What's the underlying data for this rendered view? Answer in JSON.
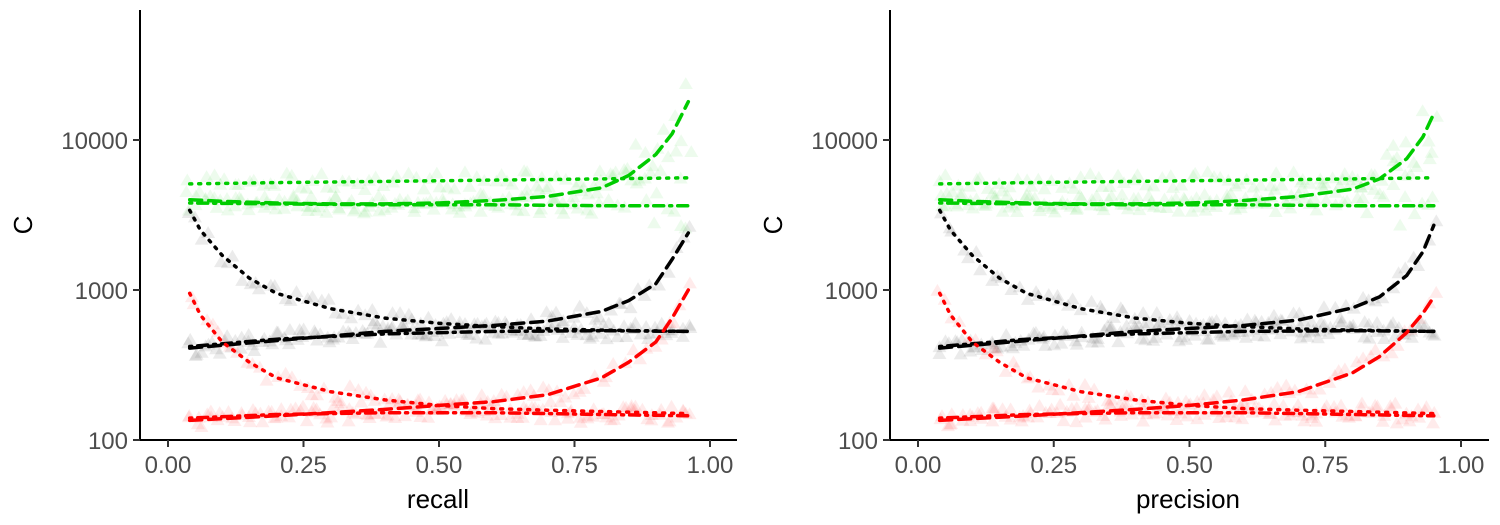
{
  "chart_data": [
    {
      "type": "scatter",
      "xlabel": "recall",
      "ylabel": "C",
      "y_scale": "log",
      "xlim": [
        0,
        1
      ],
      "ylim": [
        100,
        60000
      ],
      "x_ticks": [
        "0.00",
        "0.25",
        "0.50",
        "0.75",
        "1.00"
      ],
      "y_ticks": [
        "100",
        "1000",
        "10000"
      ],
      "grid": false,
      "legend": "none",
      "series": [
        {
          "color": "#00cc00",
          "style": "dashed",
          "x": [
            0.04,
            0.1,
            0.2,
            0.3,
            0.4,
            0.5,
            0.6,
            0.7,
            0.8,
            0.85,
            0.9,
            0.93,
            0.96
          ],
          "values": [
            4000,
            3900,
            3800,
            3750,
            3750,
            3800,
            3950,
            4200,
            4800,
            5800,
            8000,
            11000,
            18000
          ]
        },
        {
          "color": "#00cc00",
          "style": "dotted",
          "x": [
            0.04,
            0.2,
            0.4,
            0.6,
            0.8,
            0.96
          ],
          "values": [
            5100,
            5200,
            5300,
            5400,
            5500,
            5600
          ]
        },
        {
          "color": "#00cc00",
          "style": "dotdash",
          "x": [
            0.04,
            0.2,
            0.4,
            0.6,
            0.8,
            0.96
          ],
          "values": [
            3800,
            3750,
            3700,
            3700,
            3650,
            3650
          ]
        },
        {
          "color": "#000000",
          "style": "dotted",
          "x": [
            0.04,
            0.06,
            0.1,
            0.15,
            0.2,
            0.3,
            0.4,
            0.5,
            0.6,
            0.7,
            0.8,
            0.96
          ],
          "values": [
            3400,
            2500,
            1700,
            1200,
            950,
            750,
            650,
            600,
            570,
            550,
            540,
            530
          ]
        },
        {
          "color": "#000000",
          "style": "dashed",
          "x": [
            0.04,
            0.2,
            0.4,
            0.6,
            0.7,
            0.8,
            0.85,
            0.9,
            0.93,
            0.96
          ],
          "values": [
            410,
            460,
            530,
            580,
            620,
            720,
            850,
            1100,
            1600,
            2400
          ]
        },
        {
          "color": "#000000",
          "style": "dotdash",
          "x": [
            0.04,
            0.2,
            0.4,
            0.6,
            0.8,
            0.96
          ],
          "values": [
            420,
            470,
            510,
            530,
            535,
            530
          ]
        },
        {
          "color": "#ff0000",
          "style": "dotted",
          "x": [
            0.04,
            0.06,
            0.1,
            0.15,
            0.2,
            0.3,
            0.4,
            0.5,
            0.6,
            0.7,
            0.8,
            0.96
          ],
          "values": [
            950,
            680,
            450,
            330,
            260,
            210,
            185,
            170,
            162,
            158,
            155,
            150
          ]
        },
        {
          "color": "#ff0000",
          "style": "dashed",
          "x": [
            0.04,
            0.2,
            0.4,
            0.5,
            0.6,
            0.7,
            0.8,
            0.85,
            0.9,
            0.93,
            0.96
          ],
          "values": [
            135,
            145,
            160,
            170,
            180,
            200,
            260,
            330,
            450,
            650,
            1000
          ]
        },
        {
          "color": "#ff0000",
          "style": "dotdash",
          "x": [
            0.04,
            0.2,
            0.4,
            0.6,
            0.8,
            0.96
          ],
          "values": [
            140,
            148,
            152,
            152,
            148,
            145
          ]
        }
      ]
    },
    {
      "type": "scatter",
      "xlabel": "precision",
      "ylabel": "C",
      "y_scale": "log",
      "xlim": [
        0,
        1
      ],
      "ylim": [
        100,
        60000
      ],
      "x_ticks": [
        "0.00",
        "0.25",
        "0.50",
        "0.75",
        "1.00"
      ],
      "y_ticks": [
        "100",
        "1000",
        "10000"
      ],
      "grid": false,
      "legend": "none",
      "series": [
        {
          "color": "#00cc00",
          "style": "dashed",
          "x": [
            0.04,
            0.1,
            0.2,
            0.3,
            0.4,
            0.5,
            0.6,
            0.7,
            0.8,
            0.85,
            0.9,
            0.93,
            0.95
          ],
          "values": [
            4000,
            3900,
            3800,
            3750,
            3750,
            3800,
            3950,
            4200,
            4700,
            5500,
            7500,
            10500,
            15000
          ]
        },
        {
          "color": "#00cc00",
          "style": "dotted",
          "x": [
            0.04,
            0.2,
            0.4,
            0.6,
            0.8,
            0.95
          ],
          "values": [
            5100,
            5200,
            5300,
            5400,
            5500,
            5600
          ]
        },
        {
          "color": "#00cc00",
          "style": "dotdash",
          "x": [
            0.04,
            0.2,
            0.4,
            0.6,
            0.8,
            0.95
          ],
          "values": [
            3800,
            3750,
            3700,
            3700,
            3650,
            3650
          ]
        },
        {
          "color": "#000000",
          "style": "dotted",
          "x": [
            0.04,
            0.06,
            0.1,
            0.15,
            0.2,
            0.3,
            0.4,
            0.5,
            0.6,
            0.7,
            0.8,
            0.95
          ],
          "values": [
            3400,
            2500,
            1700,
            1200,
            950,
            750,
            650,
            600,
            570,
            550,
            540,
            530
          ]
        },
        {
          "color": "#000000",
          "style": "dashed",
          "x": [
            0.04,
            0.2,
            0.4,
            0.6,
            0.7,
            0.8,
            0.85,
            0.9,
            0.93,
            0.95
          ],
          "values": [
            410,
            460,
            530,
            580,
            630,
            760,
            900,
            1250,
            1800,
            2700
          ]
        },
        {
          "color": "#000000",
          "style": "dotdash",
          "x": [
            0.04,
            0.2,
            0.4,
            0.6,
            0.8,
            0.95
          ],
          "values": [
            420,
            470,
            510,
            530,
            535,
            530
          ]
        },
        {
          "color": "#ff0000",
          "style": "dotted",
          "x": [
            0.04,
            0.06,
            0.1,
            0.15,
            0.2,
            0.3,
            0.4,
            0.5,
            0.6,
            0.7,
            0.8,
            0.95
          ],
          "values": [
            950,
            680,
            450,
            330,
            260,
            210,
            185,
            170,
            162,
            158,
            155,
            150
          ]
        },
        {
          "color": "#ff0000",
          "style": "dashed",
          "x": [
            0.04,
            0.2,
            0.4,
            0.5,
            0.6,
            0.7,
            0.8,
            0.85,
            0.9,
            0.93,
            0.95
          ],
          "values": [
            135,
            145,
            160,
            170,
            185,
            210,
            280,
            360,
            520,
            700,
            900
          ]
        },
        {
          "color": "#ff0000",
          "style": "dotdash",
          "x": [
            0.04,
            0.2,
            0.4,
            0.6,
            0.8,
            0.95
          ],
          "values": [
            140,
            148,
            152,
            152,
            148,
            145
          ]
        }
      ]
    }
  ]
}
